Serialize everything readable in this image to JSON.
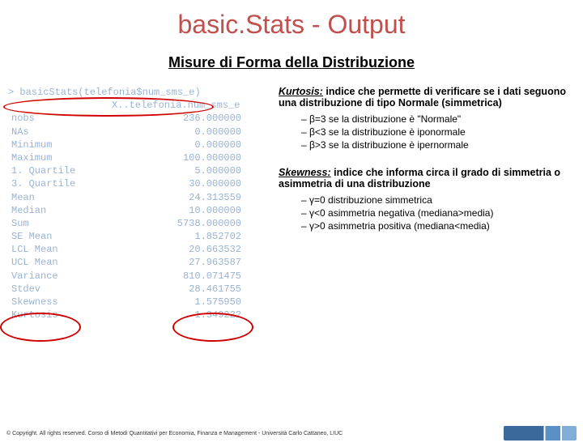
{
  "title": "basic.Stats - Output",
  "subtitle": "Misure di Forma della Distribuzione",
  "stats": {
    "command": "> basicStats(telefonia$num_sms_e)",
    "varline": "X..telefonia.num_sms_e",
    "rows": [
      {
        "label": "nobs",
        "value": "236.000000"
      },
      {
        "label": "NAs",
        "value": "0.000000"
      },
      {
        "label": "Minimum",
        "value": "0.000000"
      },
      {
        "label": "Maximum",
        "value": "100.000000"
      },
      {
        "label": "1. Quartile",
        "value": "5.000000"
      },
      {
        "label": "3. Quartile",
        "value": "30.000000"
      },
      {
        "label": "Mean",
        "value": "24.313559"
      },
      {
        "label": "Median",
        "value": "10.000000"
      },
      {
        "label": "Sum",
        "value": "5738.000000"
      },
      {
        "label": "SE Mean",
        "value": "1.852702"
      },
      {
        "label": "LCL Mean",
        "value": "20.663532"
      },
      {
        "label": "UCL Mean",
        "value": "27.963587"
      },
      {
        "label": "Variance",
        "value": "810.071475"
      },
      {
        "label": "Stdev",
        "value": "28.461755"
      },
      {
        "label": "Skewness",
        "value": "1.575950"
      },
      {
        "label": "Kurtosis",
        "value": "1.349222"
      }
    ]
  },
  "kurtosis": {
    "term": "Kurtosis:",
    "def": " indice che permette di verificare se i dati seguono una distribuzione di tipo Normale (simmetrica)",
    "bullets": [
      "β=3 se la distribuzione è \"Normale\"",
      "β<3 se la distribuzione è iponormale",
      "β>3 se la distribuzione è ipernormale"
    ]
  },
  "skewness": {
    "term": "Skewness:",
    "def": " indice che informa circa il grado di simmetria o asimmetria di una distribuzione",
    "bullets": [
      "γ=0 distribuzione simmetrica",
      "γ<0 asimmetria negativa (mediana>media)",
      "γ>0 asimmetria positiva (mediana<media)"
    ]
  },
  "footer": "© Copyright. All rights reserved. Corso di Metodi Quantitativi per Economia, Finanza e Management - Università Carlo Cattaneo, LIUC"
}
